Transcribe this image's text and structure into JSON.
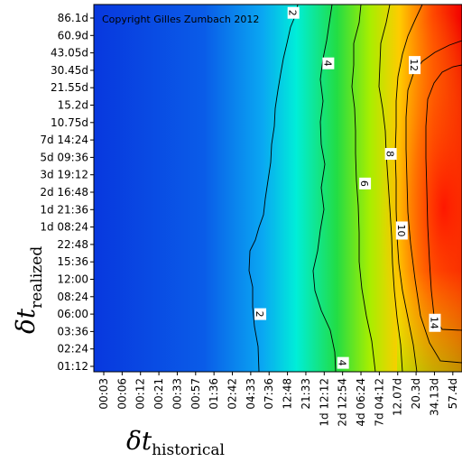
{
  "chart_data": {
    "type": "heatmap",
    "title": "",
    "copyright": "Copyright Gilles Zumbach 2012",
    "xlabel": {
      "symbol": "δt",
      "subscript": "historical"
    },
    "ylabel": {
      "symbol": "δt",
      "subscript": "realized"
    },
    "x_ticks": [
      "00:03",
      "00:06",
      "00:12",
      "00:21",
      "00:33",
      "00:57",
      "01:36",
      "02:42",
      "04:33",
      "07:36",
      "12:48",
      "21:33",
      "1d 12:12",
      "2d 12:54",
      "4d 06:24",
      "7d 04:12",
      "12.07d",
      "20.3d",
      "34.13d",
      "57.4d"
    ],
    "y_ticks": [
      "01:12",
      "02:24",
      "03:36",
      "06:00",
      "08:24",
      "12:00",
      "15:36",
      "22:48",
      "1d 08:24",
      "1d 21:36",
      "2d 16:48",
      "3d 19:12",
      "5d 09:36",
      "7d 14:24",
      "10.75d",
      "15.2d",
      "21.55d",
      "30.45d",
      "43.05d",
      "60.9d",
      "86.1d"
    ],
    "colorscale": [
      "#0033dd",
      "#0066ee",
      "#00bbff",
      "#00eecc",
      "#33dd33",
      "#bbee00",
      "#ffcc00",
      "#ff4400",
      "#ee0000"
    ],
    "contour_levels": [
      2,
      4,
      6,
      8,
      10,
      12,
      14
    ],
    "contour_labels": [
      {
        "text": "2",
        "level": 2,
        "x_index": 10.3,
        "y_index": 20.3
      },
      {
        "text": "2",
        "level": 2,
        "x_index": 8.5,
        "y_index": 3.0
      },
      {
        "text": "4",
        "level": 4,
        "x_index": 12.2,
        "y_index": 17.4
      },
      {
        "text": "4",
        "level": 4,
        "x_index": 13.0,
        "y_index": 0.2
      },
      {
        "text": "6",
        "level": 6,
        "x_index": 14.2,
        "y_index": 10.5
      },
      {
        "text": "8",
        "level": 8,
        "x_index": 15.6,
        "y_index": 12.2
      },
      {
        "text": "10",
        "level": 10,
        "x_index": 16.2,
        "y_index": 7.8
      },
      {
        "text": "12",
        "level": 12,
        "x_index": 16.9,
        "y_index": 17.3
      },
      {
        "text": "14",
        "level": 14,
        "x_index": 18.0,
        "y_index": 2.5
      }
    ]
  }
}
